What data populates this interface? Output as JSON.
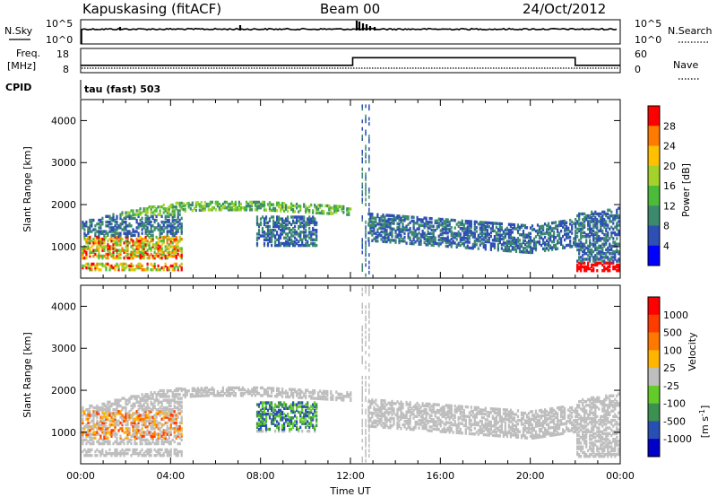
{
  "header": {
    "station": "Kapuskasing (fitACF)",
    "beam": "Beam 00",
    "date": "24/Oct/2012"
  },
  "chart_data": [
    {
      "type": "line",
      "name": "noise-panel",
      "left_label": "N.Sky",
      "left_ticks": [
        "10^5",
        "10^0"
      ],
      "right_label": "N.Search",
      "right_ticks": [
        "10^5",
        "10^0"
      ]
    },
    {
      "type": "line",
      "name": "frequency-panel",
      "left_label_line1": "Freq.",
      "left_label_line2": "[MHz]",
      "left_ticks": [
        "18",
        "8"
      ],
      "right_label": "Nave",
      "right_ticks": [
        "60",
        "0"
      ],
      "cpid_label": "CPID",
      "cpid_text": "tau (fast) 503",
      "freq_segments": [
        {
          "start_hour": 0,
          "end_hour": 12.1,
          "mhz": 10.5
        },
        {
          "start_hour": 12.1,
          "end_hour": 22.0,
          "mhz": 15.5
        },
        {
          "start_hour": 22.0,
          "end_hour": 24,
          "mhz": 10.5
        }
      ]
    },
    {
      "type": "heatmap",
      "name": "power-panel",
      "ylabel": "Slant Range [km]",
      "y_ticks": [
        1000,
        2000,
        3000,
        4000
      ],
      "ylim": [
        250,
        4500
      ],
      "xlim": [
        0,
        24
      ],
      "colorbar_title": "Power [dB]",
      "colorbar_ticks": [
        "4",
        "8",
        "12",
        "16",
        "20",
        "24",
        "28"
      ],
      "colorbar_colors": [
        "#0000ff",
        "#2e4fb4",
        "#3c8a6e",
        "#4dbb3a",
        "#a5d22a",
        "#ffc000",
        "#ff7a00",
        "#ff0000"
      ]
    },
    {
      "type": "heatmap",
      "name": "velocity-panel",
      "ylabel": "Slant Range [km]",
      "y_ticks": [
        1000,
        2000,
        3000,
        4000
      ],
      "ylim": [
        250,
        4500
      ],
      "xlim": [
        0,
        24
      ],
      "xlabel": "Time UT",
      "x_ticks": [
        "00:00",
        "04:00",
        "08:00",
        "12:00",
        "16:00",
        "20:00",
        "00:00"
      ],
      "colorbar_title": "Velocity",
      "colorbar_unit": "[m s",
      "colorbar_unit_exp": "-1",
      "colorbar_unit_end": "]",
      "colorbar_ticks": [
        "1000",
        "500",
        "100",
        "25",
        "-25",
        "-100",
        "-500",
        "-1000"
      ],
      "colorbar_colors": [
        "#0000c8",
        "#2850b4",
        "#3c9050",
        "#64cc28",
        "#bebebe",
        "#ffb400",
        "#ff7800",
        "#ff3c00",
        "#ff0000"
      ]
    }
  ]
}
